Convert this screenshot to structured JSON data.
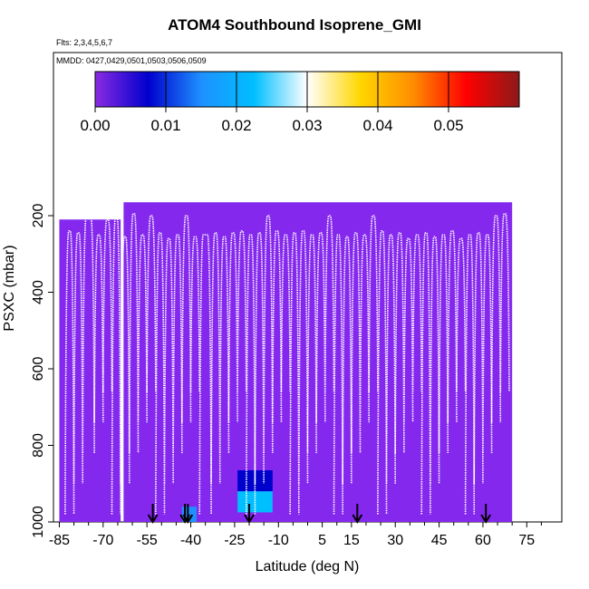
{
  "chart_data": {
    "type": "heatmap",
    "title": "ATOM4 Southbound Isoprene_GMI",
    "flights_note": "Flts: 2,3,4,5,6,7",
    "dates_note": "MMDD: 0427,0429,0501,0503,0506,0509",
    "xlabel": "Latitude (deg N)",
    "ylabel": "PSXC (mbar)",
    "xlim": [
      -87,
      87
    ],
    "ylim": [
      1000,
      0
    ],
    "xticks": [
      -85,
      -70,
      -55,
      -40,
      -25,
      -10,
      5,
      15,
      30,
      45,
      60,
      75
    ],
    "yticks": [
      200,
      400,
      600,
      800,
      1000
    ],
    "colorbar": {
      "ticks": [
        "0.00",
        "0.01",
        "0.02",
        "0.03",
        "0.04",
        "0.05"
      ],
      "range": [
        0,
        0.06
      ],
      "colors": [
        "#8a2be2",
        "#0000cd",
        "#1e90ff",
        "#00bfff",
        "#ffffff",
        "#ffd700",
        "#ff8c00",
        "#ff0000",
        "#8b1a1a"
      ]
    },
    "background_value": 0.0,
    "field_color": "#8528ee",
    "field_blocks": [
      {
        "lat_min": -85,
        "lat_max": -64,
        "p_top": 210,
        "p_bottom": 1000
      },
      {
        "lat_min": -63,
        "lat_max": 70,
        "p_top": 165,
        "p_bottom": 1000
      }
    ],
    "enhanced_cells": [
      {
        "lat_min": -43,
        "lat_max": -38,
        "p_top": 960,
        "p_bottom": 1000,
        "value": 0.012
      },
      {
        "lat_min": -24,
        "lat_max": -12,
        "p_top": 865,
        "p_bottom": 920,
        "value": 0.006
      },
      {
        "lat_min": -24,
        "lat_max": -12,
        "p_top": 920,
        "p_bottom": 975,
        "value": 0.02
      }
    ],
    "flight_profiles_lat": [
      -83,
      -80,
      -77,
      -73,
      -70,
      -67,
      -64,
      -61,
      -58,
      -55,
      -52,
      -49,
      -46,
      -43,
      -40,
      -37,
      -33,
      -30,
      -27,
      -24,
      -21,
      -18,
      -15,
      -12,
      -9,
      -6,
      -3,
      0,
      3,
      6,
      9,
      12,
      15,
      18,
      21,
      24,
      27,
      30,
      33,
      36,
      39,
      42,
      45,
      48,
      51,
      54,
      57,
      60,
      63,
      66,
      69
    ],
    "profile_tops_mbar": [
      240,
      245,
      200,
      250,
      210,
      200,
      255,
      195,
      250,
      200,
      245,
      260,
      250,
      200,
      255,
      250,
      245,
      255,
      245,
      240,
      250,
      245,
      200,
      240,
      250,
      245,
      240,
      250,
      245,
      200,
      250,
      255,
      245,
      250,
      200,
      240,
      250,
      245,
      260,
      250,
      245,
      255,
      250,
      240,
      260,
      250,
      245,
      250,
      200,
      195,
      250
    ],
    "arrows_lat": [
      -53,
      -42,
      -41,
      -20,
      17,
      61
    ]
  }
}
